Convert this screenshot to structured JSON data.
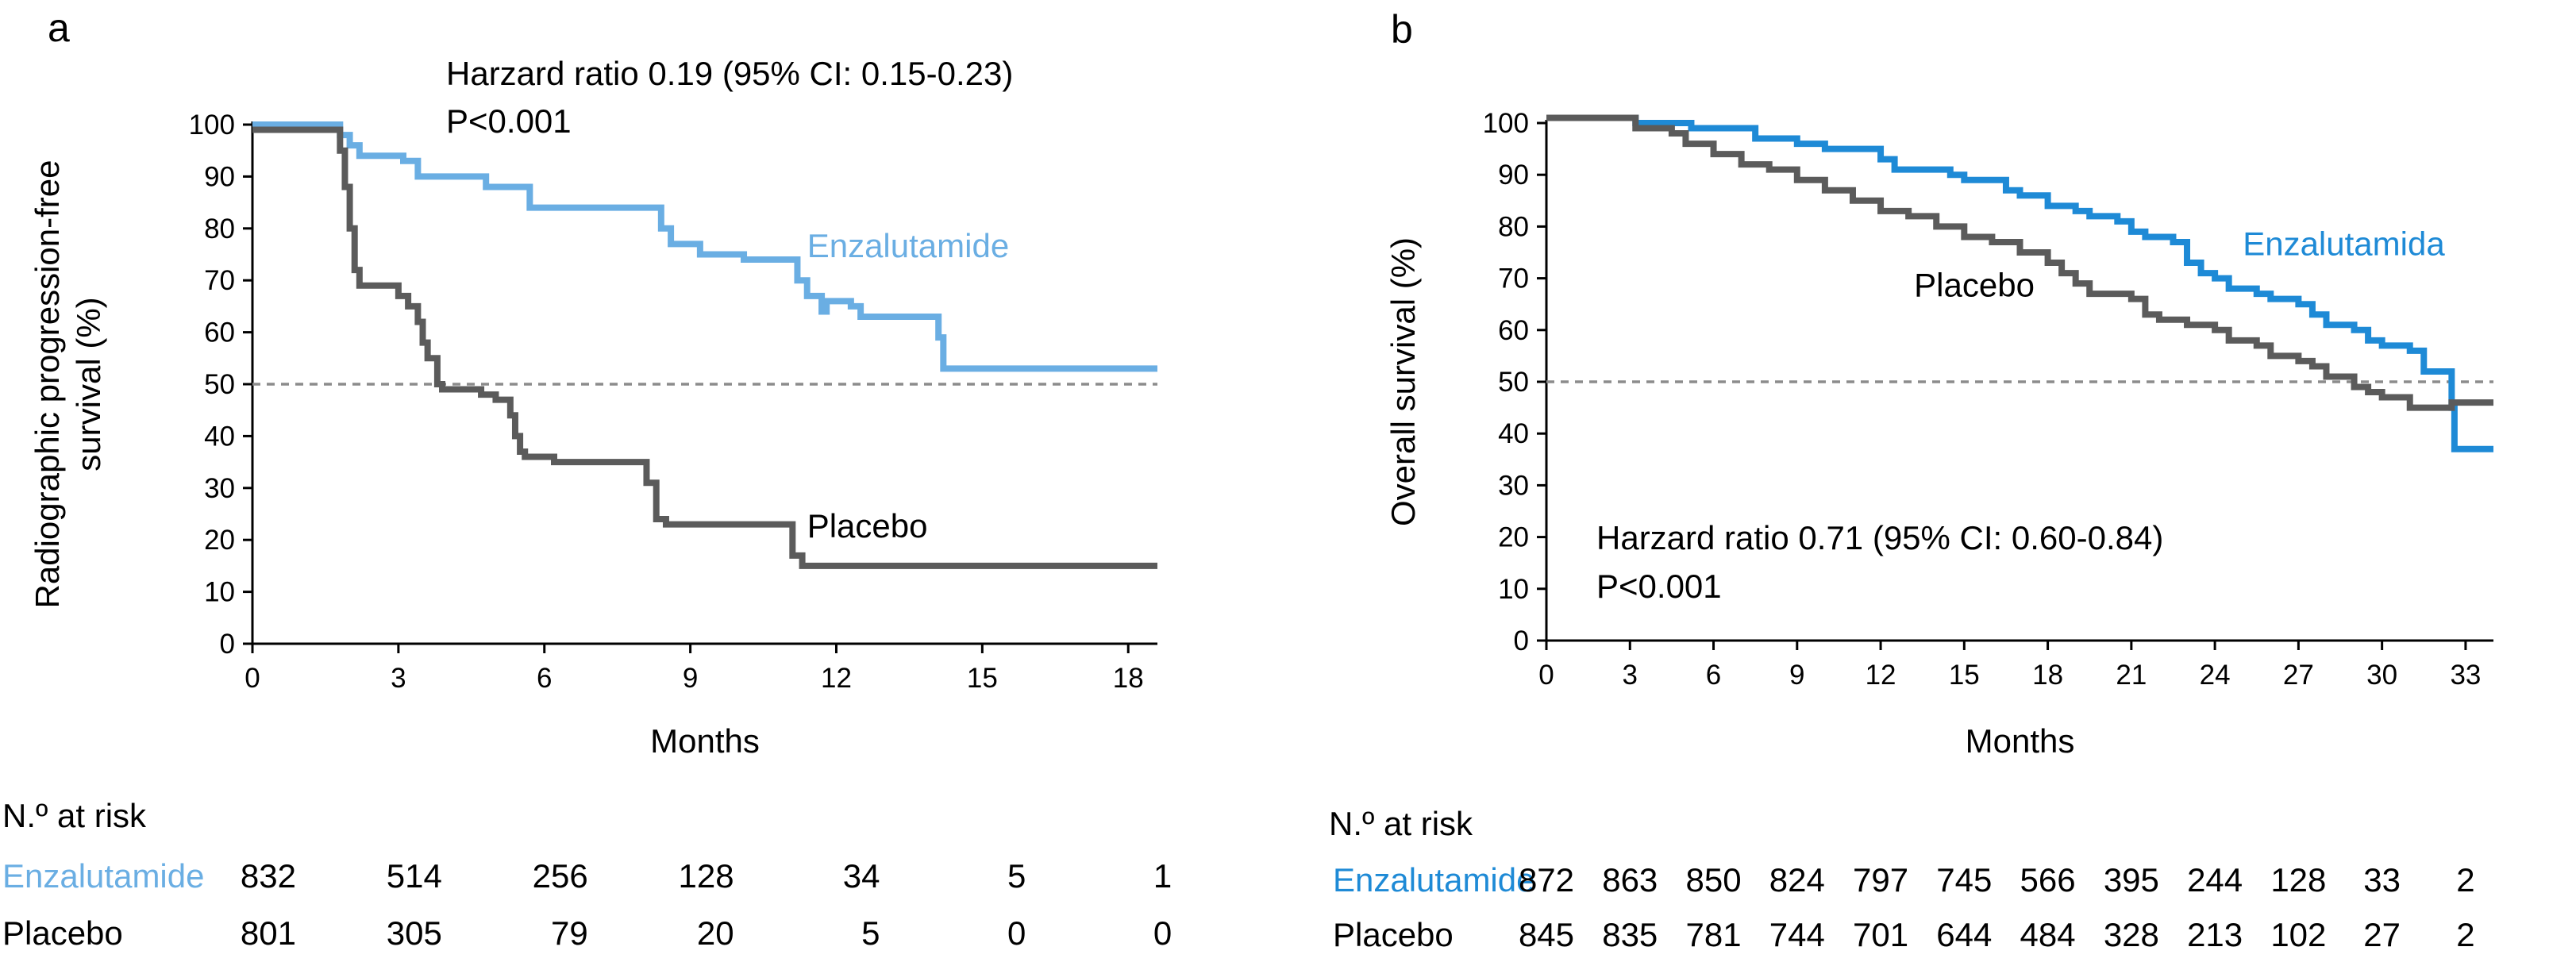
{
  "colors": {
    "enza_a": "#6AAEE3",
    "enza_b": "#1E8AD6",
    "placebo": "#5B5B5B",
    "dashed": "#8C8C8C",
    "axis": "#000000"
  },
  "chart_data": [
    {
      "id": "a",
      "type": "line",
      "panel_label": "a",
      "annotation": [
        "Harzard ratio 0.19 (95% CI: 0.15-0.23)",
        "P<0.001"
      ],
      "xlabel": "Months",
      "ylabel": [
        "Radiographic progression-free",
        "survival (%)"
      ],
      "xlim": [
        0,
        18.6
      ],
      "ylim": [
        0,
        100
      ],
      "xticks": [
        0,
        3,
        6,
        9,
        12,
        15,
        18
      ],
      "yticks": [
        0,
        10,
        20,
        30,
        40,
        50,
        60,
        70,
        80,
        90,
        100
      ],
      "reference_line_y": 50,
      "series": [
        {
          "name": "Enzalutamide",
          "color": "#6AAEE3",
          "steps": [
            [
              0,
              100
            ],
            [
              1.6,
              100
            ],
            [
              1.8,
              98
            ],
            [
              2.0,
              96
            ],
            [
              2.2,
              94
            ],
            [
              2.9,
              94
            ],
            [
              3.1,
              93
            ],
            [
              3.4,
              90
            ],
            [
              4.6,
              90
            ],
            [
              4.8,
              88
            ],
            [
              5.7,
              84
            ],
            [
              8.2,
              84
            ],
            [
              8.4,
              80
            ],
            [
              8.6,
              77
            ],
            [
              9.0,
              77
            ],
            [
              9.2,
              75
            ],
            [
              10.1,
              74
            ],
            [
              11.0,
              74
            ],
            [
              11.2,
              70
            ],
            [
              11.4,
              67
            ],
            [
              11.7,
              64
            ],
            [
              11.8,
              66
            ],
            [
              12.3,
              65
            ],
            [
              12.5,
              63
            ],
            [
              13.9,
              63
            ],
            [
              14.1,
              59
            ],
            [
              14.2,
              53
            ],
            [
              18.6,
              53
            ]
          ]
        },
        {
          "name": "Placebo",
          "color": "#5B5B5B",
          "steps": [
            [
              0,
              99
            ],
            [
              1.7,
              99
            ],
            [
              1.8,
              95
            ],
            [
              1.9,
              88
            ],
            [
              2.0,
              80
            ],
            [
              2.1,
              72
            ],
            [
              2.2,
              69
            ],
            [
              2.9,
              69
            ],
            [
              3.0,
              67
            ],
            [
              3.2,
              65
            ],
            [
              3.4,
              62
            ],
            [
              3.5,
              58
            ],
            [
              3.6,
              55
            ],
            [
              3.8,
              50
            ],
            [
              3.9,
              49
            ],
            [
              4.6,
              49
            ],
            [
              4.7,
              48
            ],
            [
              5.0,
              47
            ],
            [
              5.3,
              44
            ],
            [
              5.4,
              40
            ],
            [
              5.5,
              37
            ],
            [
              5.6,
              36
            ],
            [
              6.2,
              35
            ],
            [
              7.9,
              35
            ],
            [
              8.1,
              31
            ],
            [
              8.3,
              24
            ],
            [
              8.5,
              23
            ],
            [
              11.0,
              23
            ],
            [
              11.1,
              17
            ],
            [
              11.3,
              15
            ],
            [
              18.6,
              15
            ]
          ]
        }
      ],
      "series_labels": [
        {
          "text": "Enzalutamide",
          "x": 11.4,
          "y": 74.5,
          "color": "#6AAEE3"
        },
        {
          "text": "Placebo",
          "x": 11.4,
          "y": 20.5,
          "color": "#000000"
        }
      ],
      "at_risk": {
        "title": "N.º at risk",
        "time_points": [
          0,
          3,
          6,
          9,
          12,
          15,
          18
        ],
        "rows": [
          {
            "label": "Enzalutamide",
            "color": "#6AAEE3",
            "values": [
              "832",
              "514",
              "256",
              "128",
              "34",
              "5",
              "1"
            ]
          },
          {
            "label": "Placebo",
            "color": "#000000",
            "values": [
              "801",
              "305",
              "79",
              "20",
              "5",
              "0",
              "0"
            ]
          }
        ]
      }
    },
    {
      "id": "b",
      "type": "line",
      "panel_label": "b",
      "annotation": [
        "Harzard ratio 0.71 (95% CI: 0.60-0.84)",
        "P<0.001"
      ],
      "xlabel": "Months",
      "ylabel": [
        "Overall survival (%)"
      ],
      "xlim": [
        0,
        34
      ],
      "ylim": [
        0,
        100
      ],
      "xticks": [
        0,
        3,
        6,
        9,
        12,
        15,
        18,
        21,
        24,
        27,
        30,
        33
      ],
      "yticks": [
        0,
        10,
        20,
        30,
        40,
        50,
        60,
        70,
        80,
        90,
        100
      ],
      "reference_line_y": 50,
      "series": [
        {
          "name": "Enzalutamida",
          "color": "#1E8AD6",
          "steps": [
            [
              0,
              101
            ],
            [
              3,
              101
            ],
            [
              3.2,
              100
            ],
            [
              5,
              100
            ],
            [
              5.2,
              99
            ],
            [
              7,
              99
            ],
            [
              7.5,
              97
            ],
            [
              9,
              96
            ],
            [
              10,
              95
            ],
            [
              12,
              93
            ],
            [
              12.5,
              91
            ],
            [
              14.5,
              90
            ],
            [
              15,
              89
            ],
            [
              16.5,
              87
            ],
            [
              17,
              86
            ],
            [
              18,
              84
            ],
            [
              19,
              83
            ],
            [
              19.5,
              82
            ],
            [
              20.5,
              81
            ],
            [
              21,
              79
            ],
            [
              21.5,
              78
            ],
            [
              22.5,
              77
            ],
            [
              23,
              73
            ],
            [
              23.5,
              71
            ],
            [
              24,
              70
            ],
            [
              24.5,
              68
            ],
            [
              25.5,
              67
            ],
            [
              26,
              66
            ],
            [
              27,
              65
            ],
            [
              27.5,
              63
            ],
            [
              28,
              61
            ],
            [
              29,
              60
            ],
            [
              29.5,
              58
            ],
            [
              30,
              57
            ],
            [
              31,
              56
            ],
            [
              31.5,
              52
            ],
            [
              32.5,
              45
            ],
            [
              32.6,
              37
            ],
            [
              34,
              37
            ]
          ]
        },
        {
          "name": "Placebo",
          "color": "#5B5B5B",
          "steps": [
            [
              0,
              101
            ],
            [
              3,
              101
            ],
            [
              3.2,
              99
            ],
            [
              4.5,
              98
            ],
            [
              5,
              96
            ],
            [
              6,
              94
            ],
            [
              7,
              92
            ],
            [
              8,
              91
            ],
            [
              9,
              89
            ],
            [
              10,
              87
            ],
            [
              11,
              85
            ],
            [
              12,
              83
            ],
            [
              13,
              82
            ],
            [
              14,
              80
            ],
            [
              15,
              78
            ],
            [
              16,
              77
            ],
            [
              17,
              75
            ],
            [
              18,
              73
            ],
            [
              18.5,
              71
            ],
            [
              19,
              69
            ],
            [
              19.5,
              67
            ],
            [
              21,
              66
            ],
            [
              21.5,
              63
            ],
            [
              22,
              62
            ],
            [
              23,
              61
            ],
            [
              24,
              60
            ],
            [
              24.5,
              58
            ],
            [
              25.5,
              57
            ],
            [
              26,
              55
            ],
            [
              27,
              54
            ],
            [
              27.5,
              53
            ],
            [
              28,
              51
            ],
            [
              29,
              49
            ],
            [
              29.5,
              48
            ],
            [
              30,
              47
            ],
            [
              31,
              45
            ],
            [
              32,
              45
            ],
            [
              32.5,
              46
            ],
            [
              34,
              46
            ]
          ]
        }
      ],
      "series_labels": [
        {
          "text": "Enzalutamida",
          "x": 25,
          "y": 74.5,
          "color": "#1E8AD6"
        },
        {
          "text": "Placebo",
          "x": 13.2,
          "y": 66.5,
          "color": "#000000"
        }
      ],
      "at_risk": {
        "title": "N.º at risk",
        "time_points": [
          0,
          3,
          6,
          9,
          12,
          15,
          18,
          21,
          24,
          27,
          30,
          33
        ],
        "rows": [
          {
            "label": "Enzalutamide",
            "color": "#1E8AD6",
            "values": [
              "872",
              "863",
              "850",
              "824",
              "797",
              "745",
              "566",
              "395",
              "244",
              "128",
              "33",
              "2"
            ]
          },
          {
            "label": "Placebo",
            "color": "#000000",
            "values": [
              "845",
              "835",
              "781",
              "744",
              "701",
              "644",
              "484",
              "328",
              "213",
              "102",
              "27",
              "2"
            ]
          }
        ]
      }
    }
  ]
}
